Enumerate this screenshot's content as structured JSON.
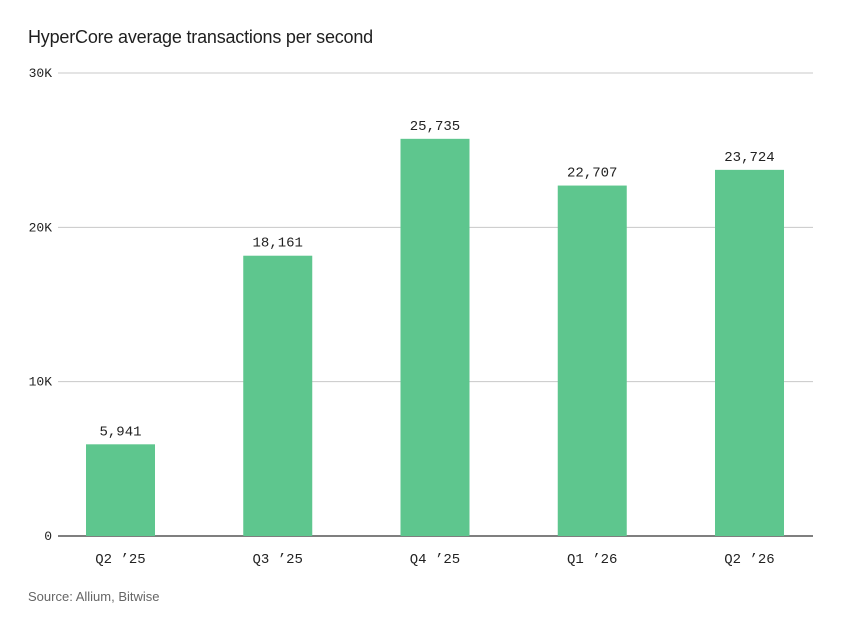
{
  "chart_data": {
    "type": "bar",
    "title": "HyperCore average transactions per second",
    "source": "Source: Allium, Bitwise",
    "categories": [
      "Q2 ’25",
      "Q3 ’25",
      "Q4 ’25",
      "Q1 ’26",
      "Q2 ’26"
    ],
    "values": [
      5941,
      18161,
      25735,
      22707,
      23724
    ],
    "value_labels": [
      "5,941",
      "18,161",
      "25,735",
      "22,707",
      "23,724"
    ],
    "ylim": [
      0,
      30000
    ],
    "yticks": [
      0,
      10000,
      20000,
      30000
    ],
    "ytick_labels": [
      "0",
      "10K",
      "20K",
      "30K"
    ],
    "xlabel": "",
    "ylabel": "",
    "grid": true,
    "legend": "none",
    "bar_color": "#5ec68e",
    "grid_color": "#c8c8c8",
    "axis_color": "#333333"
  }
}
